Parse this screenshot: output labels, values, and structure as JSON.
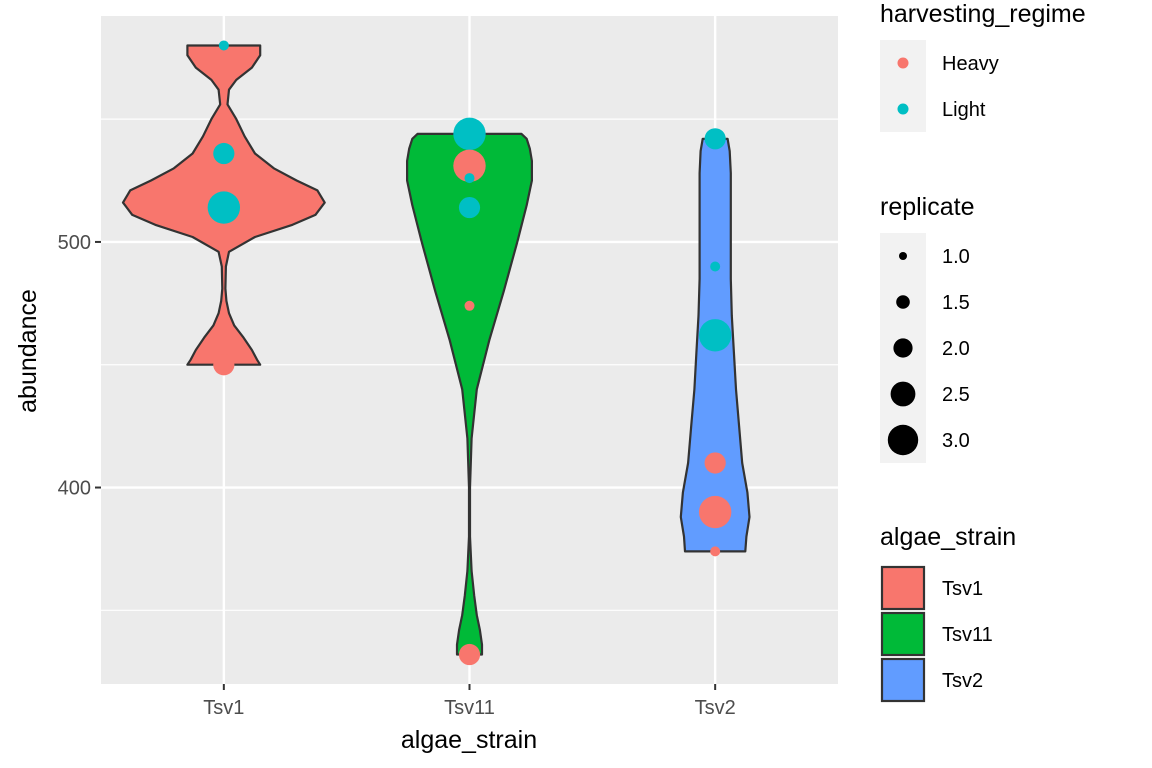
{
  "chart_data": {
    "type": "violin",
    "xlabel": "algae_strain",
    "ylabel": "abundance",
    "categories": [
      "Tsv1",
      "Tsv11",
      "Tsv2"
    ],
    "ylim": [
      320,
      592
    ],
    "yticks": [
      400,
      500
    ],
    "grid": true,
    "colors": {
      "panel": "#EBEBEB",
      "grid": "#FFFFFF",
      "Tsv1": "#F8766D",
      "Tsv11": "#00BA38",
      "Tsv2": "#619CFF",
      "Heavy": "#F8766D",
      "Light": "#00BFC4"
    },
    "violins": [
      {
        "category": "Tsv1",
        "min": 450,
        "max": 580,
        "profile": [
          [
            450,
            0.35
          ],
          [
            452,
            0.32
          ],
          [
            456,
            0.27
          ],
          [
            461,
            0.19
          ],
          [
            466,
            0.1
          ],
          [
            471,
            0.05
          ],
          [
            476,
            0.025
          ],
          [
            481,
            0.015
          ],
          [
            490,
            0.02
          ],
          [
            496,
            0.05
          ],
          [
            502,
            0.3
          ],
          [
            507,
            0.66
          ],
          [
            511,
            0.88
          ],
          [
            516,
            0.97
          ],
          [
            521,
            0.9
          ],
          [
            525,
            0.7
          ],
          [
            530,
            0.48
          ],
          [
            536,
            0.3
          ],
          [
            543,
            0.2
          ],
          [
            550,
            0.12
          ],
          [
            556,
            0.035
          ],
          [
            562,
            0.05
          ],
          [
            566,
            0.12
          ],
          [
            571,
            0.27
          ],
          [
            576,
            0.35
          ],
          [
            580,
            0.35
          ]
        ]
      },
      {
        "category": "Tsv11",
        "min": 332,
        "max": 544,
        "profile": [
          [
            332,
            0.12
          ],
          [
            336,
            0.12
          ],
          [
            342,
            0.1
          ],
          [
            348,
            0.07
          ],
          [
            356,
            0.045
          ],
          [
            366,
            0.02
          ],
          [
            380,
            0.005
          ],
          [
            400,
            0.005
          ],
          [
            420,
            0.02
          ],
          [
            440,
            0.07
          ],
          [
            460,
            0.19
          ],
          [
            480,
            0.33
          ],
          [
            500,
            0.46
          ],
          [
            515,
            0.55
          ],
          [
            525,
            0.6
          ],
          [
            533,
            0.6
          ],
          [
            538,
            0.58
          ],
          [
            542,
            0.55
          ],
          [
            544,
            0.5
          ]
        ]
      },
      {
        "category": "Tsv2",
        "min": 374,
        "max": 542,
        "profile": [
          [
            374,
            0.29
          ],
          [
            380,
            0.3
          ],
          [
            388,
            0.33
          ],
          [
            398,
            0.31
          ],
          [
            410,
            0.26
          ],
          [
            425,
            0.23
          ],
          [
            440,
            0.2
          ],
          [
            455,
            0.18
          ],
          [
            470,
            0.16
          ],
          [
            485,
            0.15
          ],
          [
            500,
            0.15
          ],
          [
            515,
            0.15
          ],
          [
            528,
            0.15
          ],
          [
            537,
            0.14
          ],
          [
            542,
            0.12
          ]
        ]
      }
    ],
    "points": [
      {
        "category": "Tsv1",
        "regime": "Light",
        "replicate": 1,
        "y": 580
      },
      {
        "category": "Tsv1",
        "regime": "Light",
        "replicate": 2,
        "y": 536
      },
      {
        "category": "Tsv1",
        "regime": "Light",
        "replicate": 3,
        "y": 514
      },
      {
        "category": "Tsv1",
        "regime": "Heavy",
        "replicate": 2,
        "y": 450
      },
      {
        "category": "Tsv11",
        "regime": "Light",
        "replicate": 3,
        "y": 544
      },
      {
        "category": "Tsv11",
        "regime": "Heavy",
        "replicate": 3,
        "y": 531
      },
      {
        "category": "Tsv11",
        "regime": "Light",
        "replicate": 1,
        "y": 526
      },
      {
        "category": "Tsv11",
        "regime": "Light",
        "replicate": 2,
        "y": 514
      },
      {
        "category": "Tsv11",
        "regime": "Heavy",
        "replicate": 1,
        "y": 474
      },
      {
        "category": "Tsv11",
        "regime": "Heavy",
        "replicate": 2,
        "y": 332
      },
      {
        "category": "Tsv2",
        "regime": "Light",
        "replicate": 2,
        "y": 542
      },
      {
        "category": "Tsv2",
        "regime": "Light",
        "replicate": 1,
        "y": 490
      },
      {
        "category": "Tsv2",
        "regime": "Light",
        "replicate": 3,
        "y": 462
      },
      {
        "category": "Tsv2",
        "regime": "Heavy",
        "replicate": 2,
        "y": 410
      },
      {
        "category": "Tsv2",
        "regime": "Heavy",
        "replicate": 3,
        "y": 390
      },
      {
        "category": "Tsv2",
        "regime": "Heavy",
        "replicate": 1,
        "y": 374
      }
    ],
    "legends": {
      "color": {
        "title": "harvesting_regime",
        "entries": [
          "Heavy",
          "Light"
        ]
      },
      "size": {
        "title": "replicate",
        "entries": [
          1.0,
          1.5,
          2.0,
          2.5,
          3.0
        ],
        "labels": [
          "1.0",
          "1.5",
          "2.0",
          "2.5",
          "3.0"
        ]
      },
      "fill": {
        "title": "algae_strain",
        "entries": [
          "Tsv1",
          "Tsv11",
          "Tsv2"
        ]
      }
    },
    "legend_position": "right"
  }
}
